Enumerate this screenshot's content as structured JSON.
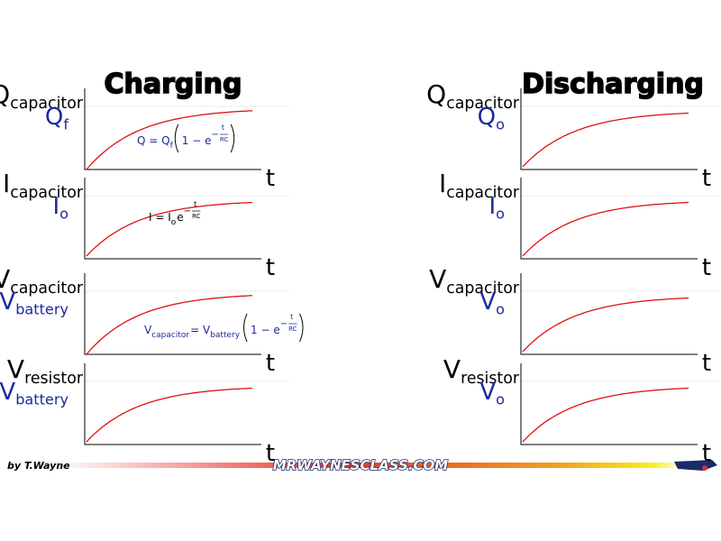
{
  "charging": {
    "title": "Charging",
    "graphs": [
      {
        "quantity": "Q",
        "quantity_sub": "capacitor",
        "level": "Q",
        "level_sub": "f",
        "axis": "t",
        "formula": {
          "lhs": "Q = Q",
          "lhs_sub": "f",
          "factor": "1 − e",
          "exp_sign": "−",
          "exp_num": "t",
          "exp_den": "RC"
        }
      },
      {
        "quantity": "I",
        "quantity_sub": "capacitor",
        "level": "I",
        "level_sub": "o",
        "axis": "t",
        "formula": {
          "lhs": "I = I",
          "lhs_sub": "o",
          "factor": "e",
          "exp_sign": "−",
          "exp_num": "t",
          "exp_den": "RC"
        }
      },
      {
        "quantity": "V",
        "quantity_sub": "capacitor",
        "level": "V",
        "level_sub": "battery",
        "axis": "t",
        "formula": {
          "lhs": "V",
          "lhs_sub": "capacitor",
          "mid": " = V",
          "mid_sub": "battery",
          "factor": "1 − e",
          "exp_sign": "−",
          "exp_num": "t",
          "exp_den": "RC"
        }
      },
      {
        "quantity": "V",
        "quantity_sub": "resistor",
        "level": "V",
        "level_sub": "battery",
        "axis": "t"
      }
    ]
  },
  "discharging": {
    "title": "Discharging",
    "graphs": [
      {
        "quantity": "Q",
        "quantity_sub": "capacitor",
        "level": "Q",
        "level_sub": "o",
        "axis": "t"
      },
      {
        "quantity": "I",
        "quantity_sub": "capacitor",
        "level": "I",
        "level_sub": "o",
        "axis": "t"
      },
      {
        "quantity": "V",
        "quantity_sub": "capacitor",
        "level": "V",
        "level_sub": "o",
        "axis": "t"
      },
      {
        "quantity": "V",
        "quantity_sub": "resistor",
        "level": "V",
        "level_sub": "o",
        "axis": "t"
      }
    ]
  },
  "footer": {
    "author": "by T.Wayne",
    "site": "MRWAYNESCLASS.COM"
  }
}
